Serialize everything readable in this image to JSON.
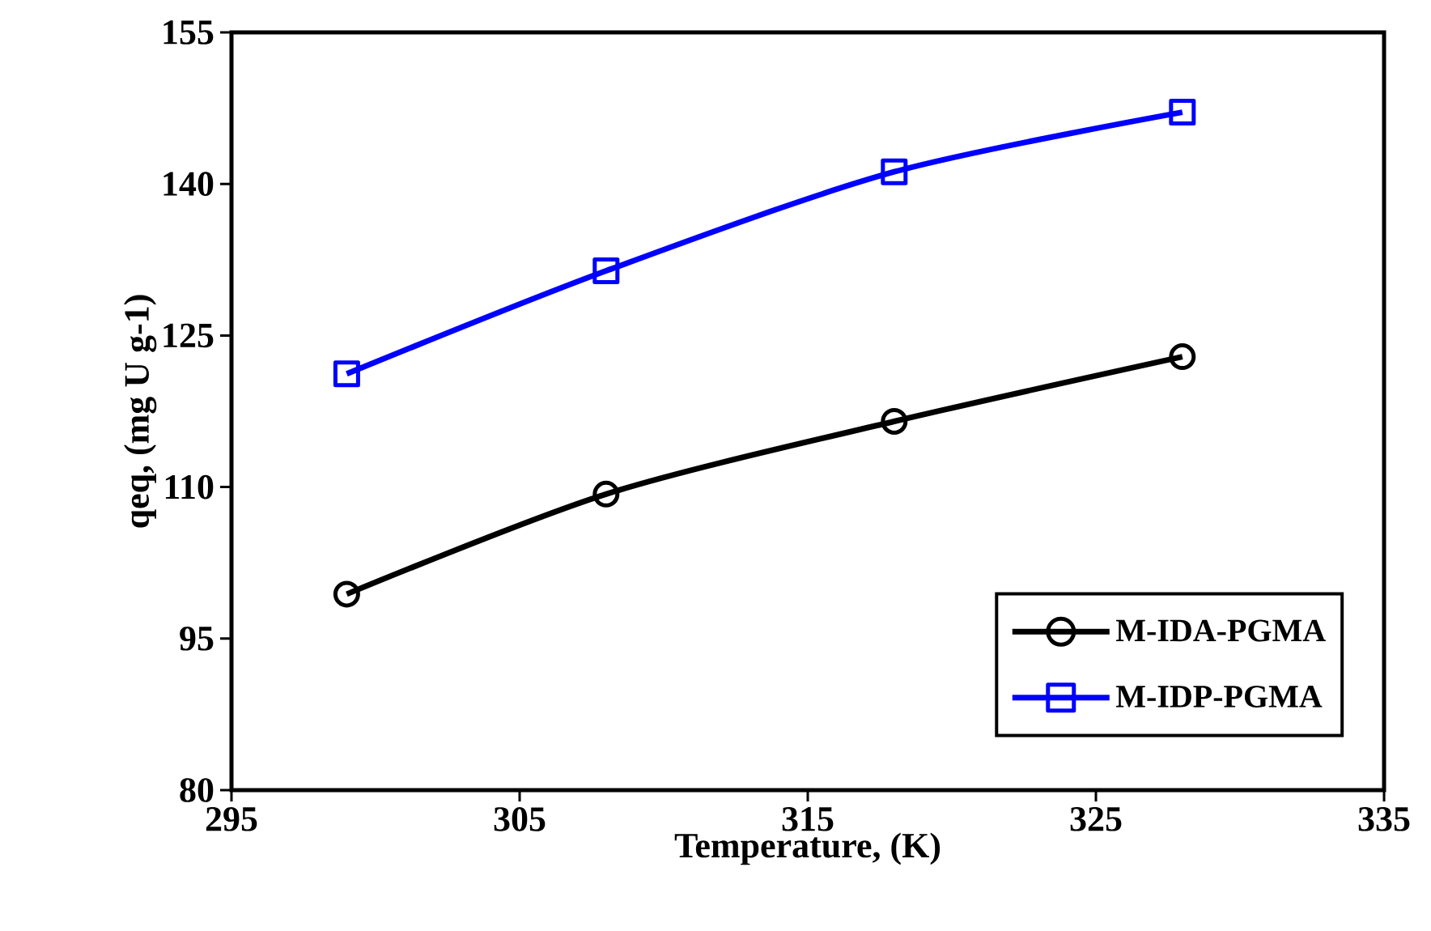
{
  "chart_data": {
    "type": "line",
    "xlabel": "Temperature, (K)",
    "ylabel": "qeq, (mg U g-1)",
    "x": [
      299,
      308,
      318,
      328
    ],
    "series": [
      {
        "name": "M-IDA-PGMA",
        "color": "#000000",
        "marker": "circle",
        "values": [
          99.4,
          109.3,
          116.5,
          122.9
        ]
      },
      {
        "name": "M-IDP-PGMA",
        "color": "#0000ff",
        "marker": "square",
        "values": [
          121.2,
          131.4,
          141.2,
          147.1
        ]
      }
    ],
    "xlim": [
      295,
      335
    ],
    "xticks": [
      295,
      305,
      315,
      325,
      335
    ],
    "ylim": [
      80,
      155
    ],
    "yticks": [
      80,
      95,
      110,
      125,
      140,
      155
    ],
    "grid": false,
    "legend": "bottom right",
    "line_style": "solid"
  }
}
